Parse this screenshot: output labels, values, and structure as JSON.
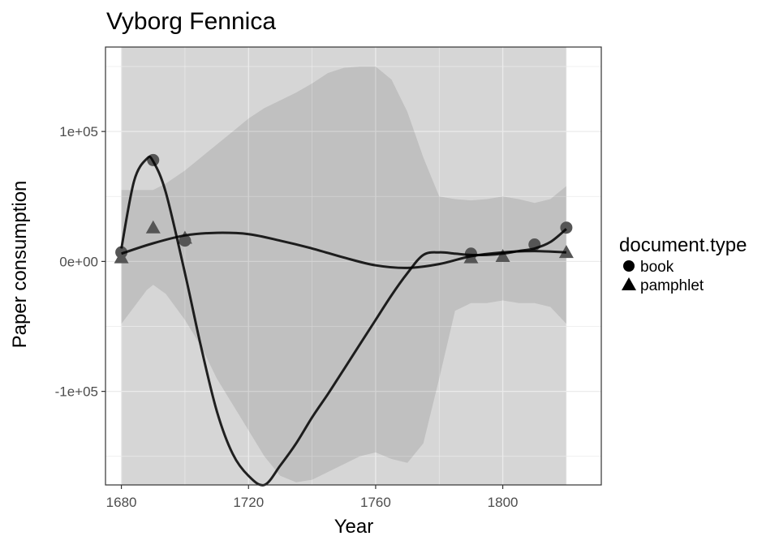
{
  "chart_data": {
    "type": "scatter",
    "title": "Vyborg Fennica",
    "xlabel": "Year",
    "ylabel": "Paper consumption",
    "xlim": [
      1675,
      1831
    ],
    "ylim": [
      -172000,
      165000
    ],
    "x_ticks": [
      1680,
      1720,
      1760,
      1800
    ],
    "x_tick_labels": [
      "1680",
      "1720",
      "1760",
      "1800"
    ],
    "y_ticks": [
      100000,
      0,
      -100000
    ],
    "y_tick_labels": [
      "1e+05",
      "0e+00",
      "-1e+05"
    ],
    "grid": true,
    "legend": {
      "title": "document.type",
      "position": "right",
      "entries": [
        {
          "label": "book",
          "shape": "circle"
        },
        {
          "label": "pamphlet",
          "shape": "triangle"
        }
      ]
    },
    "band_background": {
      "x_range": [
        1680,
        1820
      ],
      "color": "#d6d6d6"
    },
    "series": [
      {
        "name": "book",
        "shape": "circle",
        "points": [
          {
            "x": 1680,
            "y": 7000
          },
          {
            "x": 1690,
            "y": 78000
          },
          {
            "x": 1700,
            "y": 16000
          },
          {
            "x": 1790,
            "y": 6000
          },
          {
            "x": 1810,
            "y": 13000
          },
          {
            "x": 1820,
            "y": 26000
          }
        ],
        "smooth": {
          "x": [
            1680,
            1684,
            1688,
            1690,
            1694,
            1700,
            1705,
            1710,
            1715,
            1720,
            1725,
            1730,
            1735,
            1740,
            1745,
            1750,
            1755,
            1760,
            1765,
            1770,
            1775,
            1780,
            1785,
            1790,
            1795,
            1800,
            1805,
            1810,
            1815,
            1820
          ],
          "y": [
            10000,
            62000,
            79000,
            77000,
            53000,
            -9000,
            -65000,
            -115000,
            -148000,
            -165000,
            -172000,
            -157000,
            -140000,
            -120000,
            -102000,
            -83000,
            -64000,
            -45000,
            -26000,
            -9000,
            5000,
            7000,
            6000,
            5000,
            5000,
            6000,
            8000,
            10000,
            15000,
            25000
          ],
          "upper": [
            55000,
            55000,
            55000,
            55000,
            60000,
            70000,
            80000,
            90000,
            100000,
            110000,
            118000,
            124000,
            130000,
            137000,
            145000,
            149000,
            150000,
            150000,
            140000,
            115000,
            80000,
            50000,
            48000,
            47000,
            48000,
            50000,
            48000,
            45000,
            48000,
            58000
          ],
          "lower": [
            -48000,
            -35000,
            -22000,
            -18000,
            -25000,
            -45000,
            -65000,
            -90000,
            -110000,
            -130000,
            -150000,
            -165000,
            -170000,
            -168000,
            -162000,
            -156000,
            -150000,
            -147000,
            -152000,
            -155000,
            -140000,
            -90000,
            -38000,
            -32000,
            -32000,
            -30000,
            -32000,
            -32000,
            -35000,
            -48000
          ]
        }
      },
      {
        "name": "pamphlet",
        "shape": "triangle",
        "points": [
          {
            "x": 1680,
            "y": 3000
          },
          {
            "x": 1690,
            "y": 26000
          },
          {
            "x": 1700,
            "y": 18000
          },
          {
            "x": 1790,
            "y": 3000
          },
          {
            "x": 1800,
            "y": 4000
          },
          {
            "x": 1820,
            "y": 7000
          }
        ],
        "smooth": {
          "x": [
            1680,
            1690,
            1700,
            1710,
            1720,
            1730,
            1740,
            1750,
            1760,
            1770,
            1780,
            1790,
            1800,
            1810,
            1820
          ],
          "y": [
            6000,
            14000,
            20000,
            22000,
            21000,
            16000,
            10000,
            3000,
            -3000,
            -5000,
            -2000,
            4000,
            7000,
            8000,
            7000
          ]
        }
      }
    ]
  }
}
